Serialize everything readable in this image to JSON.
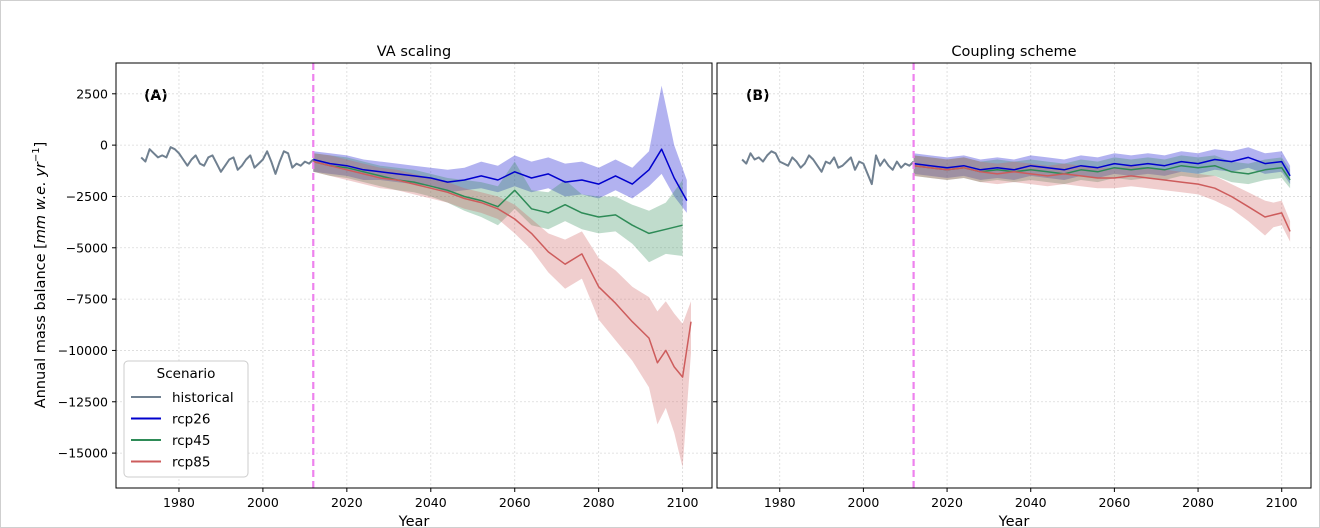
{
  "figure": {
    "ylabel_main": "Annual mass balance [",
    "ylabel_units": "mm w.e. yr",
    "ylabel_exp": "−1",
    "ylabel_close": "]"
  },
  "legend": {
    "title": "Scenario",
    "entries": [
      {
        "name": "historical",
        "color": "#708090"
      },
      {
        "name": "rcp26",
        "color": "#0000cd"
      },
      {
        "name": "rcp45",
        "color": "#2e8b57"
      },
      {
        "name": "rcp85",
        "color": "#cd5c5c"
      }
    ]
  },
  "colors": {
    "historical": "#708090",
    "rcp26": "#0000cd",
    "rcp45": "#2e8b57",
    "rcp85": "#cd5c5c",
    "vline": "#ee82ee"
  },
  "chart_data": [
    {
      "type": "line",
      "title": "VA scaling",
      "panel_label": "(A)",
      "xlabel": "Year",
      "xticks": [
        1980,
        2000,
        2020,
        2040,
        2060,
        2080,
        2100
      ],
      "yticks": [
        2500,
        0,
        -2500,
        -5000,
        -7500,
        -10000,
        -12500,
        -15000
      ],
      "ytick_labels": [
        "2500",
        "0",
        "−2500",
        "−5000",
        "−7500",
        "−10000",
        "−12500",
        "−15000"
      ],
      "xlim": [
        1965,
        2107
      ],
      "ylim": [
        -16700,
        4000
      ],
      "vline_x": 2012,
      "series": [
        {
          "name": "historical",
          "x": [
            1971,
            1972,
            1973,
            1974,
            1975,
            1976,
            1977,
            1978,
            1979,
            1980,
            1981,
            1982,
            1983,
            1984,
            1985,
            1986,
            1987,
            1988,
            1989,
            1990,
            1991,
            1992,
            1993,
            1994,
            1995,
            1996,
            1997,
            1998,
            1999,
            2000,
            2001,
            2002,
            2003,
            2004,
            2005,
            2006,
            2007,
            2008,
            2009,
            2010,
            2011,
            2012
          ],
          "y": [
            -600,
            -800,
            -200,
            -400,
            -600,
            -500,
            -600,
            -100,
            -200,
            -400,
            -700,
            -1000,
            -700,
            -500,
            -900,
            -1000,
            -600,
            -500,
            -900,
            -1300,
            -1000,
            -700,
            -600,
            -1200,
            -1000,
            -700,
            -500,
            -1100,
            -900,
            -700,
            -300,
            -800,
            -1400,
            -800,
            -300,
            -400,
            -1100,
            -900,
            -1000,
            -800,
            -900,
            -700
          ]
        },
        {
          "name": "rcp26",
          "x": [
            2012,
            2016,
            2020,
            2024,
            2028,
            2032,
            2036,
            2040,
            2044,
            2048,
            2052,
            2056,
            2060,
            2064,
            2068,
            2072,
            2076,
            2080,
            2084,
            2088,
            2092,
            2095,
            2098,
            2101
          ],
          "y": [
            -700,
            -900,
            -1000,
            -1200,
            -1300,
            -1400,
            -1500,
            -1600,
            -1800,
            -1700,
            -1500,
            -1700,
            -1300,
            -1600,
            -1400,
            -1800,
            -1700,
            -1900,
            -1500,
            -1900,
            -1200,
            -200,
            -1600,
            -2700
          ],
          "lower": [
            -1300,
            -1400,
            -1500,
            -1700,
            -1700,
            -1800,
            -1900,
            -2000,
            -2300,
            -2200,
            -2100,
            -2300,
            -2000,
            -2300,
            -2100,
            -2500,
            -2400,
            -2600,
            -2200,
            -2600,
            -2000,
            -1400,
            -2500,
            -3300
          ],
          "upper": [
            -300,
            -400,
            -500,
            -700,
            -800,
            -900,
            -1000,
            -1100,
            -1200,
            -1100,
            -800,
            -1000,
            -500,
            -800,
            -600,
            -900,
            -800,
            -1100,
            -700,
            -1100,
            -300,
            2900,
            0,
            -1700
          ]
        },
        {
          "name": "rcp45",
          "x": [
            2012,
            2016,
            2020,
            2024,
            2028,
            2032,
            2036,
            2040,
            2044,
            2048,
            2052,
            2056,
            2060,
            2064,
            2068,
            2072,
            2076,
            2080,
            2084,
            2088,
            2092,
            2096,
            2100
          ],
          "y": [
            -800,
            -1000,
            -1100,
            -1300,
            -1500,
            -1700,
            -1800,
            -2000,
            -2200,
            -2500,
            -2700,
            -3000,
            -2200,
            -3100,
            -3300,
            -2900,
            -3300,
            -3500,
            -3400,
            -3900,
            -4300,
            -4100,
            -3900
          ],
          "lower": [
            -1300,
            -1500,
            -1600,
            -1800,
            -2000,
            -2200,
            -2300,
            -2500,
            -2800,
            -3200,
            -3500,
            -3900,
            -3100,
            -3900,
            -4100,
            -3700,
            -4100,
            -4300,
            -4200,
            -4800,
            -5700,
            -5300,
            -5400
          ],
          "upper": [
            -400,
            -500,
            -600,
            -800,
            -1000,
            -1100,
            -1200,
            -1400,
            -1600,
            -1700,
            -1800,
            -2000,
            -800,
            -2200,
            -2300,
            -1700,
            -2400,
            -2500,
            -2500,
            -2900,
            -3200,
            -2800,
            -1700
          ]
        },
        {
          "name": "rcp85",
          "x": [
            2012,
            2016,
            2020,
            2024,
            2028,
            2032,
            2036,
            2040,
            2044,
            2048,
            2052,
            2056,
            2060,
            2064,
            2068,
            2072,
            2076,
            2080,
            2084,
            2088,
            2092,
            2094,
            2096,
            2098,
            2100,
            2102
          ],
          "y": [
            -800,
            -1000,
            -1200,
            -1400,
            -1600,
            -1700,
            -1900,
            -2100,
            -2300,
            -2600,
            -2800,
            -3100,
            -3600,
            -4300,
            -5200,
            -5800,
            -5300,
            -6900,
            -7700,
            -8600,
            -9400,
            -10600,
            -10000,
            -10800,
            -11300,
            -8600
          ],
          "lower": [
            -1300,
            -1500,
            -1700,
            -1900,
            -2100,
            -2200,
            -2400,
            -2600,
            -2800,
            -3100,
            -3300,
            -3600,
            -4300,
            -5100,
            -6200,
            -7000,
            -6500,
            -8500,
            -9500,
            -10500,
            -11800,
            -13600,
            -12800,
            -14000,
            -15700,
            -10100
          ],
          "upper": [
            -400,
            -500,
            -700,
            -900,
            -1100,
            -1200,
            -1400,
            -1600,
            -1800,
            -2100,
            -2300,
            -2500,
            -2900,
            -3600,
            -4300,
            -4600,
            -4200,
            -5500,
            -6100,
            -6900,
            -7400,
            -8100,
            -7600,
            -8200,
            -8700,
            -7600
          ]
        }
      ]
    },
    {
      "type": "line",
      "title": "Coupling scheme",
      "panel_label": "(B)",
      "xlabel": "Year",
      "xticks": [
        1980,
        2000,
        2020,
        2040,
        2060,
        2080,
        2100
      ],
      "xlim": [
        1965,
        2107
      ],
      "ylim": [
        -16700,
        4000
      ],
      "vline_x": 2012,
      "series": [
        {
          "name": "historical",
          "x": [
            1971,
            1972,
            1973,
            1974,
            1975,
            1976,
            1977,
            1978,
            1979,
            1980,
            1981,
            1982,
            1983,
            1984,
            1985,
            1986,
            1987,
            1988,
            1989,
            1990,
            1991,
            1992,
            1993,
            1994,
            1995,
            1996,
            1997,
            1998,
            1999,
            2000,
            2001,
            2002,
            2003,
            2004,
            2005,
            2006,
            2007,
            2008,
            2009,
            2010,
            2011,
            2012
          ],
          "y": [
            -700,
            -900,
            -400,
            -700,
            -600,
            -800,
            -500,
            -300,
            -400,
            -800,
            -900,
            -1000,
            -600,
            -800,
            -1100,
            -900,
            -500,
            -700,
            -1000,
            -1300,
            -800,
            -900,
            -600,
            -1100,
            -1000,
            -800,
            -600,
            -1200,
            -800,
            -900,
            -1400,
            -1900,
            -500,
            -1000,
            -700,
            -1000,
            -1200,
            -800,
            -1100,
            -900,
            -1000,
            -800
          ]
        },
        {
          "name": "rcp26",
          "x": [
            2012,
            2016,
            2020,
            2024,
            2028,
            2032,
            2036,
            2040,
            2044,
            2048,
            2052,
            2056,
            2060,
            2064,
            2068,
            2072,
            2076,
            2080,
            2084,
            2088,
            2092,
            2096,
            2100,
            2102
          ],
          "y": [
            -900,
            -1000,
            -1100,
            -1000,
            -1200,
            -1100,
            -1200,
            -1000,
            -1100,
            -1200,
            -1000,
            -1100,
            -900,
            -1000,
            -900,
            -1000,
            -800,
            -900,
            -700,
            -800,
            -600,
            -900,
            -800,
            -1500
          ],
          "lower": [
            -1400,
            -1500,
            -1600,
            -1500,
            -1700,
            -1600,
            -1700,
            -1500,
            -1600,
            -1700,
            -1500,
            -1600,
            -1400,
            -1500,
            -1400,
            -1500,
            -1300,
            -1400,
            -1200,
            -1300,
            -1100,
            -1400,
            -1300,
            -1900
          ],
          "upper": [
            -400,
            -500,
            -600,
            -500,
            -700,
            -600,
            -700,
            -500,
            -600,
            -700,
            -500,
            -600,
            -400,
            -500,
            -400,
            -500,
            -300,
            -400,
            -200,
            -300,
            -100,
            -400,
            -300,
            -1000
          ]
        },
        {
          "name": "rcp45",
          "x": [
            2012,
            2016,
            2020,
            2024,
            2028,
            2032,
            2036,
            2040,
            2044,
            2048,
            2052,
            2056,
            2060,
            2064,
            2068,
            2072,
            2076,
            2080,
            2084,
            2088,
            2092,
            2096,
            2100,
            2102
          ],
          "y": [
            -1000,
            -1100,
            -1200,
            -1100,
            -1300,
            -1200,
            -1300,
            -1200,
            -1300,
            -1400,
            -1200,
            -1300,
            -1100,
            -1200,
            -1100,
            -1200,
            -1000,
            -1100,
            -1000,
            -1300,
            -1400,
            -1200,
            -1100,
            -1700
          ],
          "lower": [
            -1500,
            -1600,
            -1700,
            -1600,
            -1800,
            -1700,
            -1800,
            -1700,
            -1800,
            -1900,
            -1700,
            -1800,
            -1600,
            -1700,
            -1600,
            -1700,
            -1500,
            -1600,
            -1500,
            -1800,
            -1900,
            -1700,
            -1600,
            -2100
          ],
          "upper": [
            -500,
            -600,
            -700,
            -600,
            -800,
            -700,
            -800,
            -700,
            -800,
            -900,
            -700,
            -800,
            -600,
            -700,
            -600,
            -700,
            -500,
            -600,
            -500,
            -800,
            -900,
            -700,
            -600,
            -1200
          ]
        },
        {
          "name": "rcp85",
          "x": [
            2012,
            2016,
            2020,
            2024,
            2028,
            2032,
            2036,
            2040,
            2044,
            2048,
            2052,
            2056,
            2060,
            2064,
            2068,
            2072,
            2076,
            2080,
            2084,
            2088,
            2092,
            2096,
            2098,
            2100,
            2102
          ],
          "y": [
            -1000,
            -1100,
            -1200,
            -1100,
            -1300,
            -1400,
            -1300,
            -1400,
            -1500,
            -1400,
            -1500,
            -1600,
            -1600,
            -1500,
            -1600,
            -1700,
            -1800,
            -1900,
            -2100,
            -2500,
            -3000,
            -3500,
            -3400,
            -3300,
            -4200
          ],
          "lower": [
            -1500,
            -1600,
            -1700,
            -1600,
            -1800,
            -1900,
            -1800,
            -1900,
            -2000,
            -1900,
            -2000,
            -2100,
            -2100,
            -2000,
            -2100,
            -2200,
            -2300,
            -2400,
            -2700,
            -3100,
            -3700,
            -4400,
            -4000,
            -3900,
            -4700
          ],
          "upper": [
            -500,
            -600,
            -700,
            -600,
            -800,
            -900,
            -800,
            -900,
            -1000,
            -900,
            -1000,
            -1100,
            -1100,
            -1000,
            -1100,
            -1200,
            -1300,
            -1400,
            -1500,
            -1900,
            -2300,
            -2700,
            -2800,
            -2700,
            -3700
          ]
        }
      ]
    }
  ]
}
